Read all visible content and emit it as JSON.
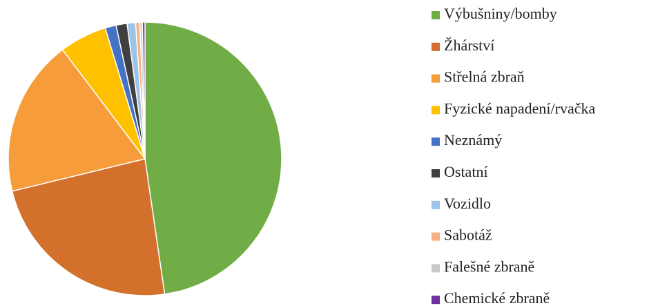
{
  "chart_data": {
    "type": "pie",
    "categories": [
      "Výbušniny/bomby",
      "Žhárství",
      "Střelná zbraň",
      "Fyzické napadení/rvačka",
      "Neznámý",
      "Ostatní",
      "Vozidlo",
      "Sabotáž",
      "Falešné zbraně",
      "Chemické zbraně"
    ],
    "values": [
      47.7,
      23.5,
      18.5,
      5.6,
      1.3,
      1.3,
      1.0,
      0.5,
      0.3,
      0.3
    ],
    "colors": [
      "#70ad47",
      "#d2702c",
      "#f79c3a",
      "#ffc000",
      "#4472c4",
      "#404040",
      "#9dc3e6",
      "#f4b183",
      "#c9c9c9",
      "#7030a0"
    ],
    "legend": "right"
  }
}
